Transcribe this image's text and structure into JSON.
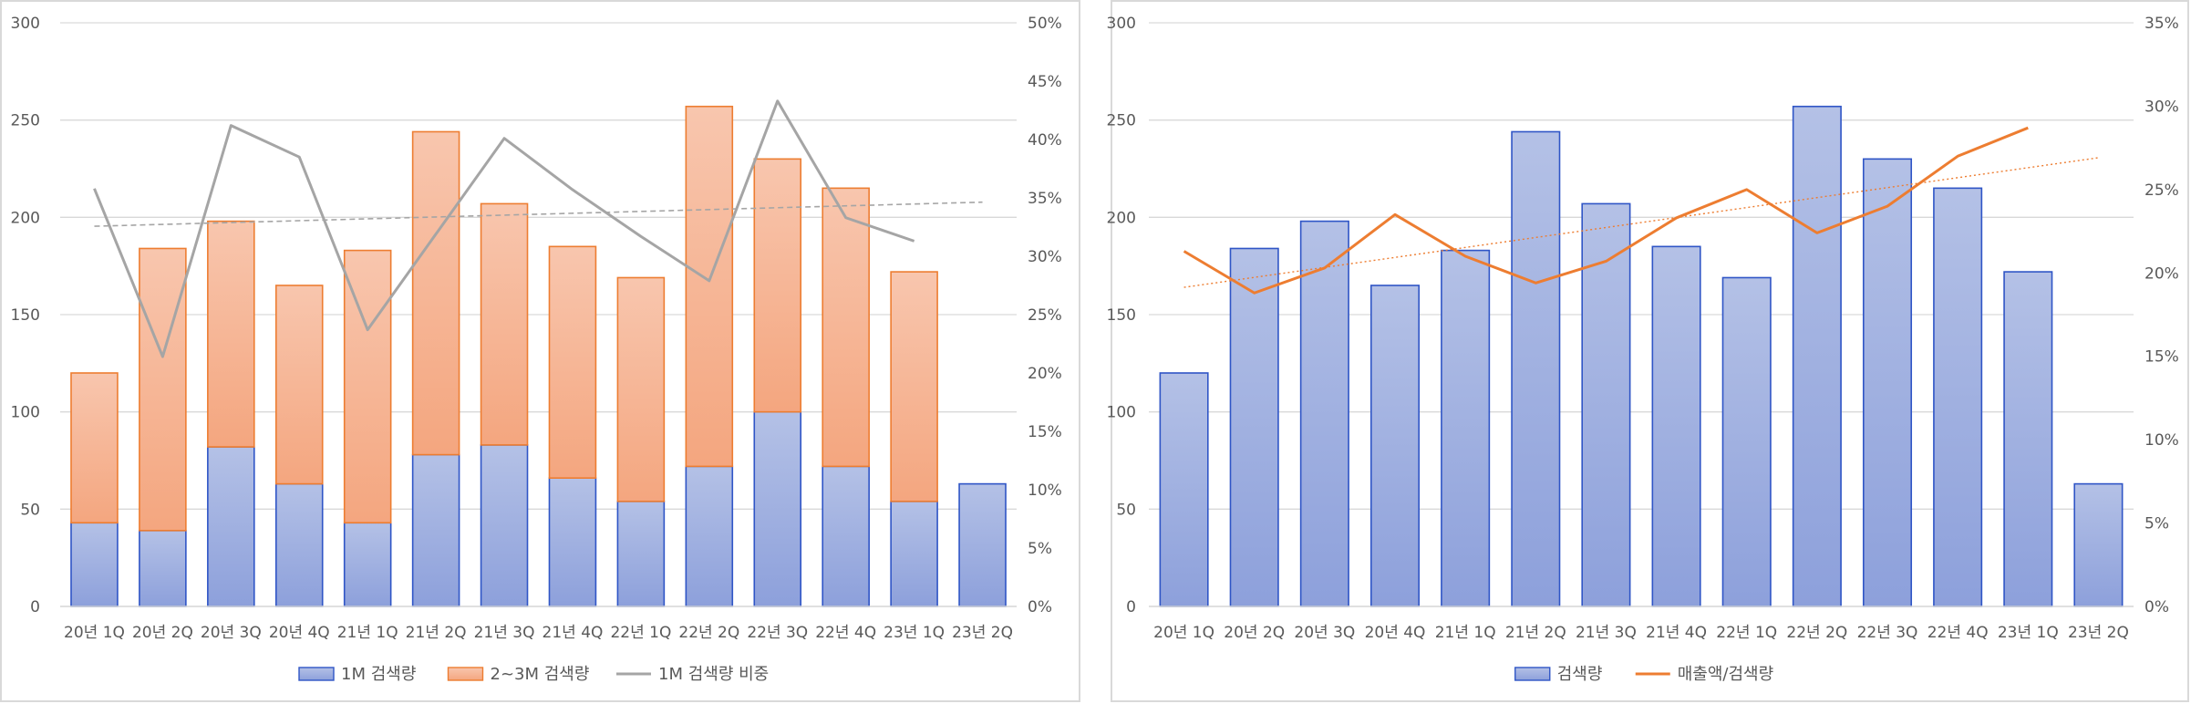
{
  "colors": {
    "blue_fill_top": "#b4c1e6",
    "blue_fill_bottom": "#8da0db",
    "blue_edge": "#2f55c6",
    "orange_fill_top": "#f8c6ae",
    "orange_fill_bottom": "#f4a67f",
    "orange_edge": "#ed7d31",
    "gray_line": "#a5a5a5",
    "orange_line": "#ed7d31",
    "grid": "#d9d9d9",
    "text": "#595959"
  },
  "chart_data": [
    {
      "type": "bar",
      "stacked": true,
      "categories": [
        "20년 1Q",
        "20년 2Q",
        "20년 3Q",
        "20년 4Q",
        "21년 1Q",
        "21년 2Q",
        "21년 3Q",
        "21년 4Q",
        "22년 1Q",
        "22년 2Q",
        "22년 3Q",
        "22년 4Q",
        "23년 1Q",
        "23년 2Q"
      ],
      "series": [
        {
          "name": "1M 검색량",
          "kind": "bar",
          "axis": "left",
          "values": [
            43,
            39,
            82,
            63,
            43,
            78,
            83,
            66,
            54,
            72,
            100,
            72,
            54,
            63
          ]
        },
        {
          "name": "2~3M 검색량",
          "kind": "bar",
          "axis": "left",
          "values": [
            77,
            145,
            116,
            102,
            140,
            166,
            124,
            119,
            115,
            185,
            130,
            143,
            118,
            null
          ]
        },
        {
          "name": "1M 검색량 비중",
          "kind": "line",
          "axis": "right",
          "values": [
            35.8,
            21.4,
            41.2,
            38.5,
            23.7,
            31.9,
            40.1,
            35.7,
            31.7,
            27.9,
            43.3,
            33.3,
            31.3,
            null
          ]
        }
      ],
      "trendline": {
        "series": "1M 검색량 비중",
        "style": "dashed"
      },
      "ylim": [
        0,
        300
      ],
      "yticks": [
        "0",
        "50",
        "100",
        "150",
        "200",
        "250",
        "300"
      ],
      "y2lim": [
        0,
        50
      ],
      "y2ticks": [
        "0%",
        "5%",
        "10%",
        "15%",
        "20%",
        "25%",
        "30%",
        "35%",
        "40%",
        "45%",
        "50%"
      ],
      "grid": true,
      "legend": "bottom"
    },
    {
      "type": "bar",
      "categories": [
        "20년 1Q",
        "20년 2Q",
        "20년 3Q",
        "20년 4Q",
        "21년 1Q",
        "21년 2Q",
        "21년 3Q",
        "21년 4Q",
        "22년 1Q",
        "22년 2Q",
        "22년 3Q",
        "22년 4Q",
        "23년 1Q",
        "23년 2Q"
      ],
      "series": [
        {
          "name": "검색량",
          "kind": "bar",
          "axis": "left",
          "values": [
            120,
            184,
            198,
            165,
            183,
            244,
            207,
            185,
            169,
            257,
            230,
            215,
            172,
            63
          ]
        },
        {
          "name": "매출액/검색량",
          "kind": "line",
          "axis": "right",
          "values": [
            21.3,
            18.8,
            20.3,
            23.5,
            21.0,
            19.4,
            20.7,
            23.3,
            25.0,
            22.4,
            24.0,
            27.0,
            28.7,
            null
          ]
        }
      ],
      "trendline": {
        "series": "매출액/검색량",
        "style": "dotted"
      },
      "ylim": [
        0,
        300
      ],
      "yticks": [
        "0",
        "50",
        "100",
        "150",
        "200",
        "250",
        "300"
      ],
      "y2lim": [
        0,
        35
      ],
      "y2ticks": [
        "0%",
        "5%",
        "10%",
        "15%",
        "20%",
        "25%",
        "30%",
        "35%"
      ],
      "grid": true,
      "legend": "bottom"
    }
  ]
}
